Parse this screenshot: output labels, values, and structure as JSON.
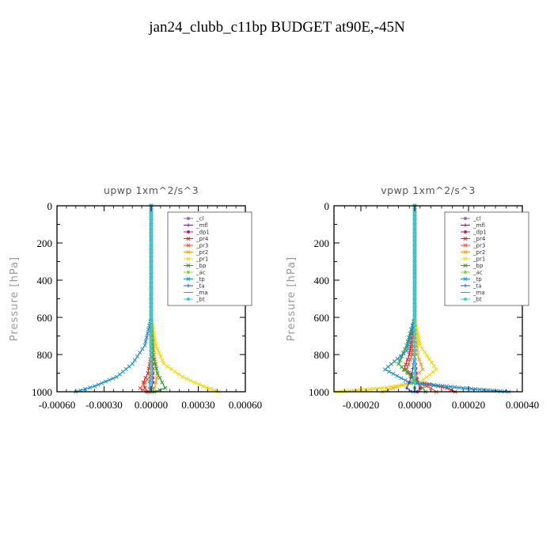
{
  "figure": {
    "title": "jan24_clubb_c11bp  BUDGET at90E,-45N"
  },
  "chart_data": [
    {
      "type": "line",
      "title": "upwp   1xm^2/s^3",
      "xlabel": "",
      "ylabel": "Pressure [hPa]",
      "xlim": [
        -0.0006,
        0.0006
      ],
      "ylim": [
        0,
        1000
      ],
      "y_inverted": true,
      "xticks": [
        -0.0006,
        -0.0003,
        0.0,
        0.0003,
        0.0006
      ],
      "xtick_labels": [
        "-0.00060",
        "-0.00030",
        "0.00000",
        "0.00030",
        "0.00060"
      ],
      "yticks": [
        0,
        200,
        400,
        600,
        800,
        1000
      ],
      "ytick_labels": [
        "0",
        "200",
        "400",
        "600",
        "800",
        "1000"
      ],
      "legend_position": "top-right",
      "grid": false,
      "series": [
        {
          "name": "_cl",
          "color": "#9467bd",
          "marker": "circle",
          "x": [
            0.0,
            0.0,
            0.0,
            0.0,
            0.0,
            0.0,
            0.0,
            0.0,
            0.0
          ],
          "y": [
            0,
            200,
            400,
            600,
            800,
            900,
            950,
            980,
            1000
          ]
        },
        {
          "name": "_mfl",
          "color": "#7a1f5c",
          "marker": "plus",
          "x": [
            0.0,
            0.0,
            0.0,
            0.0,
            0.0,
            0.0,
            0.0,
            0.0,
            0.0
          ],
          "y": [
            0,
            200,
            400,
            600,
            800,
            900,
            950,
            980,
            1000
          ]
        },
        {
          "name": "_dp1",
          "color": "#c71585",
          "marker": "circle",
          "x": [
            0.0,
            0.0,
            0.0,
            0.0,
            5e-06,
            1e-05,
            1e-05,
            5e-06,
            0.0
          ],
          "y": [
            0,
            200,
            400,
            600,
            800,
            900,
            950,
            980,
            1000
          ]
        },
        {
          "name": "_pr4",
          "color": "#e0211c",
          "marker": "cross",
          "x": [
            0.0,
            0.0,
            0.0,
            0.0,
            0.0,
            -2e-05,
            -5e-05,
            -4e-05,
            -2e-05
          ],
          "y": [
            0,
            200,
            400,
            600,
            800,
            900,
            950,
            980,
            1000
          ]
        },
        {
          "name": "_pr3",
          "color": "#ff4a2a",
          "marker": "cross",
          "x": [
            0.0,
            0.0,
            0.0,
            0.0,
            0.0,
            1e-05,
            -4e-05,
            -7e-05,
            -3e-05
          ],
          "y": [
            0,
            200,
            400,
            600,
            800,
            900,
            950,
            980,
            1000
          ]
        },
        {
          "name": "_pr2",
          "color": "#ff9e1b",
          "marker": "cross",
          "x": [
            0.0,
            0.0,
            0.0,
            0.0,
            2e-05,
            4e-05,
            3e-05,
            2e-05,
            1e-05
          ],
          "y": [
            0,
            200,
            400,
            600,
            800,
            900,
            950,
            980,
            1000
          ]
        },
        {
          "name": "_pr1",
          "color": "#f5d800",
          "marker": "cross",
          "x": [
            0.0,
            0.0,
            0.0,
            0.0,
            3e-05,
            8e-05,
            0.0002,
            0.00033,
            0.00043
          ],
          "y": [
            0,
            200,
            400,
            600,
            750,
            850,
            920,
            970,
            1000
          ]
        },
        {
          "name": "_bp",
          "color": "#2ca02c",
          "marker": "cross",
          "x": [
            0.0,
            0.0,
            0.0,
            0.0,
            1e-05,
            4e-05,
            7e-05,
            9e-05,
            2e-05
          ],
          "y": [
            0,
            200,
            400,
            600,
            800,
            900,
            950,
            980,
            1000
          ]
        },
        {
          "name": "_ac",
          "color": "#7ddc3c",
          "marker": "circle",
          "x": [
            0.0,
            0.0,
            0.0,
            0.0,
            0.0,
            0.0,
            0.0,
            0.0,
            0.0
          ],
          "y": [
            0,
            200,
            400,
            600,
            800,
            900,
            950,
            980,
            1000
          ]
        },
        {
          "name": "_tp",
          "color": "#1f8fd0",
          "marker": "cross",
          "x": [
            0.0,
            0.0,
            0.0,
            0.0,
            -4e-05,
            -0.00012,
            -0.00022,
            -0.00036,
            -0.00048
          ],
          "y": [
            0,
            200,
            400,
            600,
            750,
            850,
            920,
            970,
            1000
          ]
        },
        {
          "name": "_ta",
          "color": "#2a4fd0",
          "marker": "plus",
          "x": [
            0.0,
            0.0,
            0.0,
            0.0,
            0.0,
            0.0,
            -1e-05,
            -1e-05,
            0.0
          ],
          "y": [
            0,
            200,
            400,
            600,
            800,
            900,
            950,
            980,
            1000
          ]
        },
        {
          "name": "_ma",
          "color": "#3aa0c8",
          "marker": "dash",
          "x": [
            0.0,
            0.0,
            0.0,
            0.0,
            0.0,
            0.0,
            0.0,
            0.0,
            0.0
          ],
          "y": [
            0,
            200,
            400,
            600,
            800,
            900,
            950,
            980,
            1000
          ]
        },
        {
          "name": "_bt",
          "color": "#2ad4d4",
          "marker": "circle",
          "x": [
            0.0,
            0.0,
            0.0,
            0.0,
            0.0,
            0.0,
            0.0,
            0.0,
            0.0
          ],
          "y": [
            0,
            200,
            400,
            600,
            800,
            900,
            950,
            980,
            1000
          ]
        }
      ]
    },
    {
      "type": "line",
      "title": "vpwp   1xm^2/s^3",
      "xlabel": "",
      "ylabel": "Pressure [hPa]",
      "xlim": [
        -0.0003,
        0.0004
      ],
      "ylim": [
        0,
        1000
      ],
      "y_inverted": true,
      "xticks": [
        -0.0002,
        0.0,
        0.0002,
        0.0004
      ],
      "xtick_labels": [
        "-0.00020",
        "0.00000",
        "0.00020",
        "0.00040"
      ],
      "yticks": [
        0,
        200,
        400,
        600,
        800,
        1000
      ],
      "ytick_labels": [
        "0",
        "200",
        "400",
        "600",
        "800",
        "1000"
      ],
      "legend_position": "top-right",
      "grid": false,
      "series": [
        {
          "name": "_cl",
          "color": "#9467bd",
          "marker": "circle",
          "x": [
            0.0,
            0.0,
            0.0,
            0.0,
            0.0,
            0.0,
            0.0,
            0.0,
            0.0
          ],
          "y": [
            0,
            200,
            400,
            600,
            800,
            900,
            950,
            980,
            1000
          ]
        },
        {
          "name": "_mfl",
          "color": "#7a1f5c",
          "marker": "plus",
          "x": [
            0.0,
            0.0,
            0.0,
            0.0,
            0.0,
            0.0,
            0.0,
            0.0,
            0.0
          ],
          "y": [
            0,
            200,
            400,
            600,
            800,
            900,
            950,
            980,
            1000
          ]
        },
        {
          "name": "_dp1",
          "color": "#c71585",
          "marker": "circle",
          "x": [
            0.0,
            0.0,
            0.0,
            0.0,
            0.0,
            5e-06,
            1e-05,
            2e-05,
            1e-05
          ],
          "y": [
            0,
            200,
            400,
            600,
            800,
            900,
            950,
            980,
            1000
          ]
        },
        {
          "name": "_pr4",
          "color": "#e0211c",
          "marker": "cross",
          "x": [
            0.0,
            0.0,
            0.0,
            0.0,
            -2e-05,
            -4e-05,
            2e-05,
            0.00012,
            0.00015
          ],
          "y": [
            0,
            200,
            400,
            600,
            800,
            880,
            950,
            980,
            1000
          ]
        },
        {
          "name": "_pr3",
          "color": "#ff4a2a",
          "marker": "cross",
          "x": [
            0.0,
            0.0,
            0.0,
            0.0,
            -1e-05,
            -3e-05,
            1e-05,
            6e-05,
            8e-05
          ],
          "y": [
            0,
            200,
            400,
            600,
            800,
            880,
            950,
            980,
            1000
          ]
        },
        {
          "name": "_pr2",
          "color": "#ff9e1b",
          "marker": "cross",
          "x": [
            0.0,
            0.0,
            0.0,
            0.0,
            1e-05,
            3e-05,
            -2e-05,
            -8e-05,
            -0.00012
          ],
          "y": [
            0,
            200,
            400,
            600,
            800,
            880,
            950,
            980,
            1000
          ]
        },
        {
          "name": "_pr1",
          "color": "#f5d800",
          "marker": "cross",
          "x": [
            0.0,
            0.0,
            0.0,
            0.0,
            2e-05,
            8e-05,
            2e-05,
            -0.00012,
            -0.00029
          ],
          "y": [
            0,
            200,
            400,
            600,
            750,
            880,
            950,
            980,
            1000
          ]
        },
        {
          "name": "_bp",
          "color": "#2ca02c",
          "marker": "cross",
          "x": [
            0.0,
            0.0,
            0.0,
            0.0,
            -3e-05,
            -6e-05,
            1e-05,
            3e-05,
            4e-05
          ],
          "y": [
            0,
            200,
            400,
            600,
            750,
            850,
            950,
            980,
            1000
          ]
        },
        {
          "name": "_ac",
          "color": "#7ddc3c",
          "marker": "circle",
          "x": [
            0.0,
            0.0,
            0.0,
            0.0,
            0.0,
            0.0,
            0.0,
            0.0,
            0.0
          ],
          "y": [
            0,
            200,
            400,
            600,
            800,
            900,
            950,
            980,
            1000
          ]
        },
        {
          "name": "_tp",
          "color": "#1f8fd0",
          "marker": "cross",
          "x": [
            0.0,
            0.0,
            0.0,
            0.0,
            -3e-05,
            -0.00011,
            -2e-05,
            0.00018,
            0.00035
          ],
          "y": [
            0,
            200,
            400,
            600,
            780,
            880,
            950,
            980,
            1000
          ]
        },
        {
          "name": "_ta",
          "color": "#2a4fd0",
          "marker": "plus",
          "x": [
            0.0,
            0.0,
            0.0,
            0.0,
            0.0,
            -1e-05,
            -2e-05,
            -3e-05,
            -1e-05
          ],
          "y": [
            0,
            200,
            400,
            600,
            800,
            900,
            950,
            980,
            1000
          ]
        },
        {
          "name": "_ma",
          "color": "#3aa0c8",
          "marker": "dash",
          "x": [
            0.0,
            0.0,
            0.0,
            0.0,
            0.0,
            0.0,
            0.0,
            0.0,
            0.0
          ],
          "y": [
            0,
            200,
            400,
            600,
            800,
            900,
            950,
            980,
            1000
          ]
        },
        {
          "name": "_bt",
          "color": "#2ad4d4",
          "marker": "circle",
          "x": [
            0.0,
            0.0,
            0.0,
            0.0,
            0.0,
            0.0,
            0.0,
            0.0,
            0.0
          ],
          "y": [
            0,
            200,
            400,
            600,
            800,
            900,
            950,
            980,
            1000
          ]
        }
      ]
    }
  ]
}
